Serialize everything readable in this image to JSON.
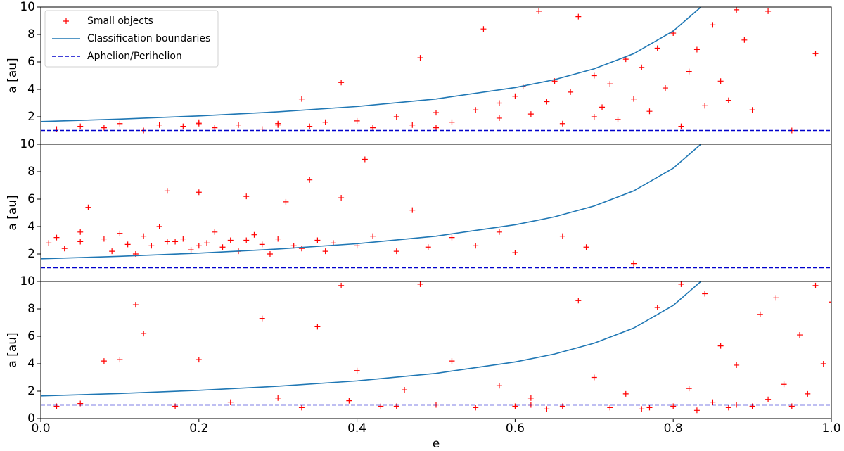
{
  "chart_data": [
    {
      "type": "scatter",
      "ylabel": "a [au]",
      "legend": "upper left",
      "xlim": [
        0,
        1
      ],
      "ylim": [
        0,
        10
      ],
      "yticks": [
        2,
        4,
        6,
        8,
        10
      ],
      "series": [
        {
          "name": "Small objects",
          "color": "#ff0000",
          "marker": "+",
          "x": [
            0.02,
            0.05,
            0.08,
            0.1,
            0.13,
            0.15,
            0.18,
            0.2,
            0.22,
            0.25,
            0.28,
            0.3,
            0.33,
            0.34,
            0.36,
            0.38,
            0.4,
            0.42,
            0.45,
            0.47,
            0.48,
            0.5,
            0.52,
            0.55,
            0.56,
            0.58,
            0.6,
            0.61,
            0.62,
            0.63,
            0.64,
            0.65,
            0.66,
            0.67,
            0.68,
            0.7,
            0.71,
            0.72,
            0.73,
            0.74,
            0.75,
            0.76,
            0.77,
            0.78,
            0.79,
            0.8,
            0.81,
            0.82,
            0.83,
            0.84,
            0.85,
            0.86,
            0.87,
            0.88,
            0.89,
            0.9,
            0.92,
            0.95,
            0.98,
            0.58,
            0.7,
            0.5,
            0.2,
            0.3
          ],
          "values": [
            1.1,
            1.3,
            1.2,
            1.5,
            1.0,
            1.4,
            1.3,
            1.6,
            1.2,
            1.4,
            1.1,
            1.5,
            3.3,
            1.3,
            1.6,
            4.5,
            1.7,
            1.2,
            2.0,
            1.4,
            6.3,
            2.3,
            1.6,
            2.5,
            8.4,
            1.9,
            3.5,
            4.2,
            2.2,
            9.7,
            3.1,
            4.6,
            1.5,
            3.8,
            9.3,
            5.0,
            2.7,
            4.4,
            1.8,
            6.2,
            3.3,
            5.6,
            2.4,
            7.0,
            4.1,
            8.1,
            1.3,
            5.3,
            6.9,
            2.8,
            8.7,
            4.6,
            3.2,
            9.8,
            7.6,
            2.5,
            9.7,
            1.0,
            6.6,
            3.0,
            2.0,
            1.2,
            1.5,
            1.4
          ]
        },
        {
          "name": "Classification boundaries",
          "color": "#1f77b4",
          "x": [
            0,
            0.1,
            0.2,
            0.3,
            0.4,
            0.5,
            0.6,
            0.65,
            0.7,
            0.75,
            0.8,
            0.835
          ],
          "values": [
            1.65,
            1.83,
            2.06,
            2.36,
            2.75,
            3.3,
            4.13,
            4.71,
            5.5,
            6.6,
            8.25,
            10
          ]
        },
        {
          "name": "Aphelion/Perihelion",
          "color": "#0000cc",
          "dashed": true,
          "x": [
            0,
            1
          ],
          "values": [
            1,
            1
          ]
        }
      ]
    },
    {
      "type": "scatter",
      "ylabel": "a [au]",
      "xlim": [
        0,
        1
      ],
      "ylim": [
        0,
        10
      ],
      "yticks": [
        2,
        4,
        6,
        8,
        10
      ],
      "series": [
        {
          "color": "#ff0000",
          "marker": "+",
          "x": [
            0.01,
            0.02,
            0.03,
            0.05,
            0.06,
            0.08,
            0.09,
            0.1,
            0.11,
            0.12,
            0.13,
            0.14,
            0.15,
            0.16,
            0.17,
            0.18,
            0.19,
            0.2,
            0.21,
            0.22,
            0.23,
            0.24,
            0.25,
            0.26,
            0.27,
            0.28,
            0.29,
            0.3,
            0.31,
            0.32,
            0.33,
            0.34,
            0.35,
            0.36,
            0.37,
            0.38,
            0.4,
            0.41,
            0.42,
            0.45,
            0.47,
            0.49,
            0.52,
            0.55,
            0.58,
            0.6,
            0.66,
            0.69,
            0.75,
            0.05,
            0.16,
            0.2,
            0.26
          ],
          "values": [
            2.8,
            3.2,
            2.4,
            2.9,
            5.4,
            3.1,
            2.2,
            3.5,
            2.7,
            2.0,
            3.3,
            2.6,
            4.0,
            6.6,
            2.9,
            3.1,
            2.3,
            6.5,
            2.8,
            3.6,
            2.5,
            3.0,
            2.2,
            6.2,
            3.4,
            2.7,
            2.0,
            3.1,
            5.8,
            2.6,
            2.4,
            7.4,
            3.0,
            2.2,
            2.8,
            6.1,
            2.6,
            8.9,
            3.3,
            2.2,
            5.2,
            2.5,
            3.2,
            2.6,
            3.6,
            2.1,
            3.3,
            2.5,
            1.3,
            3.6,
            2.9,
            2.6,
            3.0
          ]
        },
        {
          "color": "#1f77b4",
          "x": [
            0,
            0.1,
            0.2,
            0.3,
            0.4,
            0.5,
            0.6,
            0.65,
            0.7,
            0.75,
            0.8,
            0.835
          ],
          "values": [
            1.65,
            1.83,
            2.06,
            2.36,
            2.75,
            3.3,
            4.13,
            4.71,
            5.5,
            6.6,
            8.25,
            10
          ]
        },
        {
          "color": "#0000cc",
          "dashed": true,
          "x": [
            0,
            1
          ],
          "values": [
            1,
            1
          ]
        }
      ]
    },
    {
      "type": "scatter",
      "xlabel": "e",
      "ylabel": "a [au]",
      "xlim": [
        0,
        1
      ],
      "ylim": [
        0,
        10
      ],
      "yticks": [
        0,
        2,
        4,
        6,
        8,
        10
      ],
      "xticks": [
        {
          "value": 0,
          "label": "0.0"
        },
        0.2,
        0.4,
        0.6,
        0.8,
        {
          "value": 1,
          "label": "1.0"
        }
      ],
      "series": [
        {
          "color": "#ff0000",
          "marker": "+",
          "x": [
            0.02,
            0.05,
            0.08,
            0.1,
            0.12,
            0.13,
            0.17,
            0.2,
            0.24,
            0.28,
            0.3,
            0.33,
            0.35,
            0.38,
            0.39,
            0.4,
            0.43,
            0.46,
            0.48,
            0.5,
            0.52,
            0.55,
            0.58,
            0.6,
            0.62,
            0.64,
            0.66,
            0.68,
            0.7,
            0.72,
            0.74,
            0.76,
            0.78,
            0.8,
            0.81,
            0.82,
            0.83,
            0.84,
            0.85,
            0.86,
            0.87,
            0.88,
            0.9,
            0.91,
            0.92,
            0.93,
            0.94,
            0.95,
            0.96,
            0.97,
            0.98,
            0.99,
            1.0,
            0.45,
            0.62,
            0.77,
            0.88
          ],
          "values": [
            0.9,
            1.1,
            4.2,
            4.3,
            8.3,
            6.2,
            0.9,
            4.3,
            1.2,
            7.3,
            1.5,
            0.8,
            6.7,
            9.7,
            1.3,
            3.5,
            0.9,
            2.1,
            9.8,
            1.0,
            4.2,
            0.8,
            2.4,
            0.9,
            1.5,
            0.7,
            0.9,
            8.6,
            3.0,
            0.8,
            1.8,
            0.7,
            8.1,
            0.9,
            9.8,
            2.2,
            0.6,
            9.1,
            1.2,
            5.3,
            0.8,
            3.9,
            0.9,
            7.6,
            1.4,
            8.8,
            2.5,
            0.9,
            6.1,
            1.8,
            9.7,
            4.0,
            8.5,
            0.9,
            1.0,
            0.8,
            1.0
          ]
        },
        {
          "color": "#1f77b4",
          "x": [
            0,
            0.1,
            0.2,
            0.3,
            0.4,
            0.5,
            0.6,
            0.65,
            0.7,
            0.75,
            0.8,
            0.835
          ],
          "values": [
            1.65,
            1.83,
            2.06,
            2.36,
            2.75,
            3.3,
            4.13,
            4.71,
            5.5,
            6.6,
            8.25,
            10
          ]
        },
        {
          "color": "#0000cc",
          "dashed": true,
          "x": [
            0,
            1
          ],
          "values": [
            1,
            1
          ]
        }
      ]
    }
  ]
}
